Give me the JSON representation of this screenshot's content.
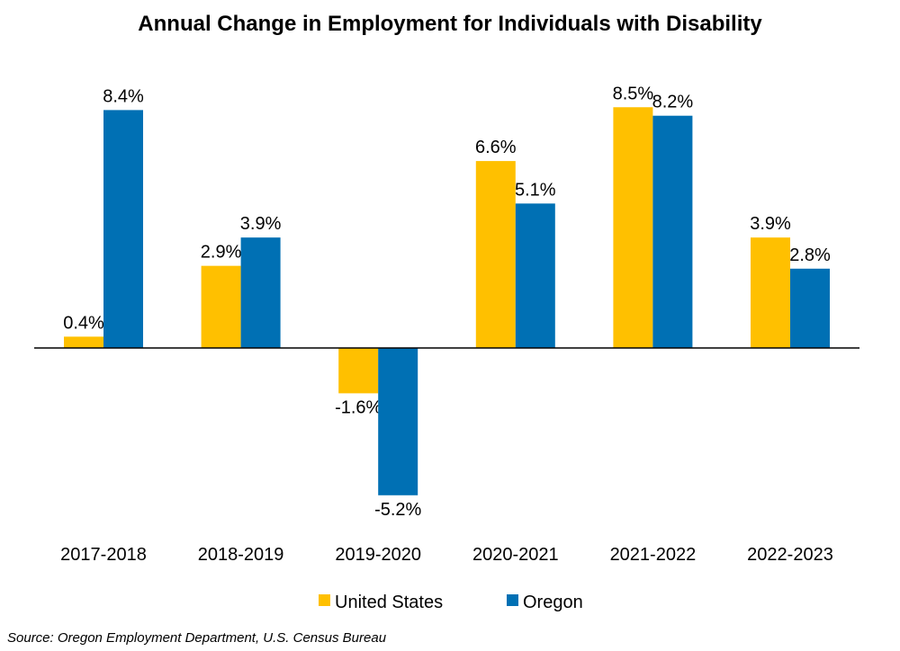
{
  "chart_data": {
    "type": "bar",
    "title": "Annual Change in Employment for Individuals with Disability",
    "xlabel": "",
    "ylabel": "",
    "categories": [
      "2017-2018",
      "2018-2019",
      "2019-2020",
      "2020-2021",
      "2021-2022",
      "2022-2023"
    ],
    "series": [
      {
        "name": "United States",
        "color": "#FFC000",
        "values": [
          0.4,
          2.9,
          -1.6,
          6.6,
          8.5,
          3.9
        ],
        "labels": [
          "0.4%",
          "2.9%",
          "-1.6%",
          "6.6%",
          "8.5%",
          "3.9%"
        ]
      },
      {
        "name": "Oregon",
        "color": "#0070B4",
        "values": [
          8.4,
          3.9,
          -5.2,
          5.1,
          8.2,
          2.8
        ],
        "labels": [
          "8.4%",
          "3.9%",
          "-5.2%",
          "5.1%",
          "8.2%",
          "2.8%"
        ]
      }
    ],
    "grid": false,
    "legend": "bottom",
    "source": "Source: Oregon Employment Department, U.S. Census Bureau"
  }
}
